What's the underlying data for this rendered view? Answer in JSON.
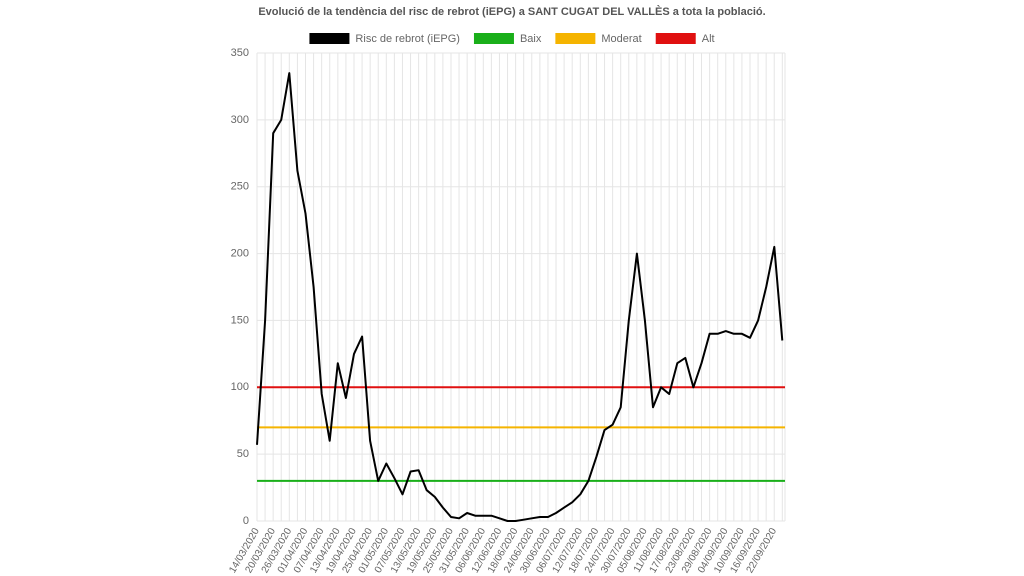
{
  "chart_data": {
    "type": "line",
    "title": "Evolució de la tendència del risc de rebrot (iEPG) a SANT CUGAT DEL VALLÈS a tota la població.",
    "categories": [
      "14/03/2020",
      null,
      "20/03/2020",
      null,
      "26/03/2020",
      null,
      "01/04/2020",
      null,
      "07/04/2020",
      null,
      "13/04/2020",
      null,
      "19/04/2020",
      null,
      "25/04/2020",
      null,
      "01/05/2020",
      null,
      "07/05/2020",
      null,
      "13/05/2020",
      null,
      "19/05/2020",
      null,
      "25/05/2020",
      null,
      "31/05/2020",
      null,
      "06/06/2020",
      null,
      "12/06/2020",
      null,
      "18/06/2020",
      null,
      "24/06/2020",
      null,
      "30/06/2020",
      null,
      "06/07/2020",
      null,
      "12/07/2020",
      null,
      "18/07/2020",
      null,
      "24/07/2020",
      null,
      "30/07/2020",
      null,
      "05/08/2020",
      null,
      "11/08/2020",
      null,
      "17/08/2020",
      null,
      "23/08/2020",
      null,
      "29/08/2020",
      null,
      "04/09/2020",
      null,
      "10/09/2020",
      null,
      "16/09/2020",
      null,
      "22/09/2020",
      null
    ],
    "series": [
      {
        "name": "Risc de rebrot (iEPG)",
        "color": "#000000",
        "values": [
          57,
          150,
          290,
          300,
          335,
          262,
          230,
          175,
          95,
          60,
          118,
          92,
          125,
          138,
          60,
          30,
          43,
          32,
          20,
          37,
          38,
          23,
          18,
          10,
          3,
          2,
          6,
          4,
          4,
          4,
          2,
          0,
          0,
          1,
          2,
          3,
          3,
          6,
          10,
          14,
          20,
          30,
          48,
          68,
          72,
          85,
          150,
          200,
          150,
          85,
          100,
          95,
          118,
          122,
          100,
          118,
          140,
          140,
          142,
          140,
          140,
          137,
          150,
          175,
          205,
          135
        ]
      }
    ],
    "reference_lines": [
      {
        "name": "Baix",
        "color": "#1aaf1a",
        "value": 30
      },
      {
        "name": "Moderat",
        "color": "#f5b400",
        "value": 70
      },
      {
        "name": "Alt",
        "color": "#e01010",
        "value": 100
      }
    ],
    "ylim": [
      0,
      350
    ],
    "yticks": [
      0,
      50,
      100,
      150,
      200,
      250,
      300,
      350
    ],
    "grid": true
  }
}
